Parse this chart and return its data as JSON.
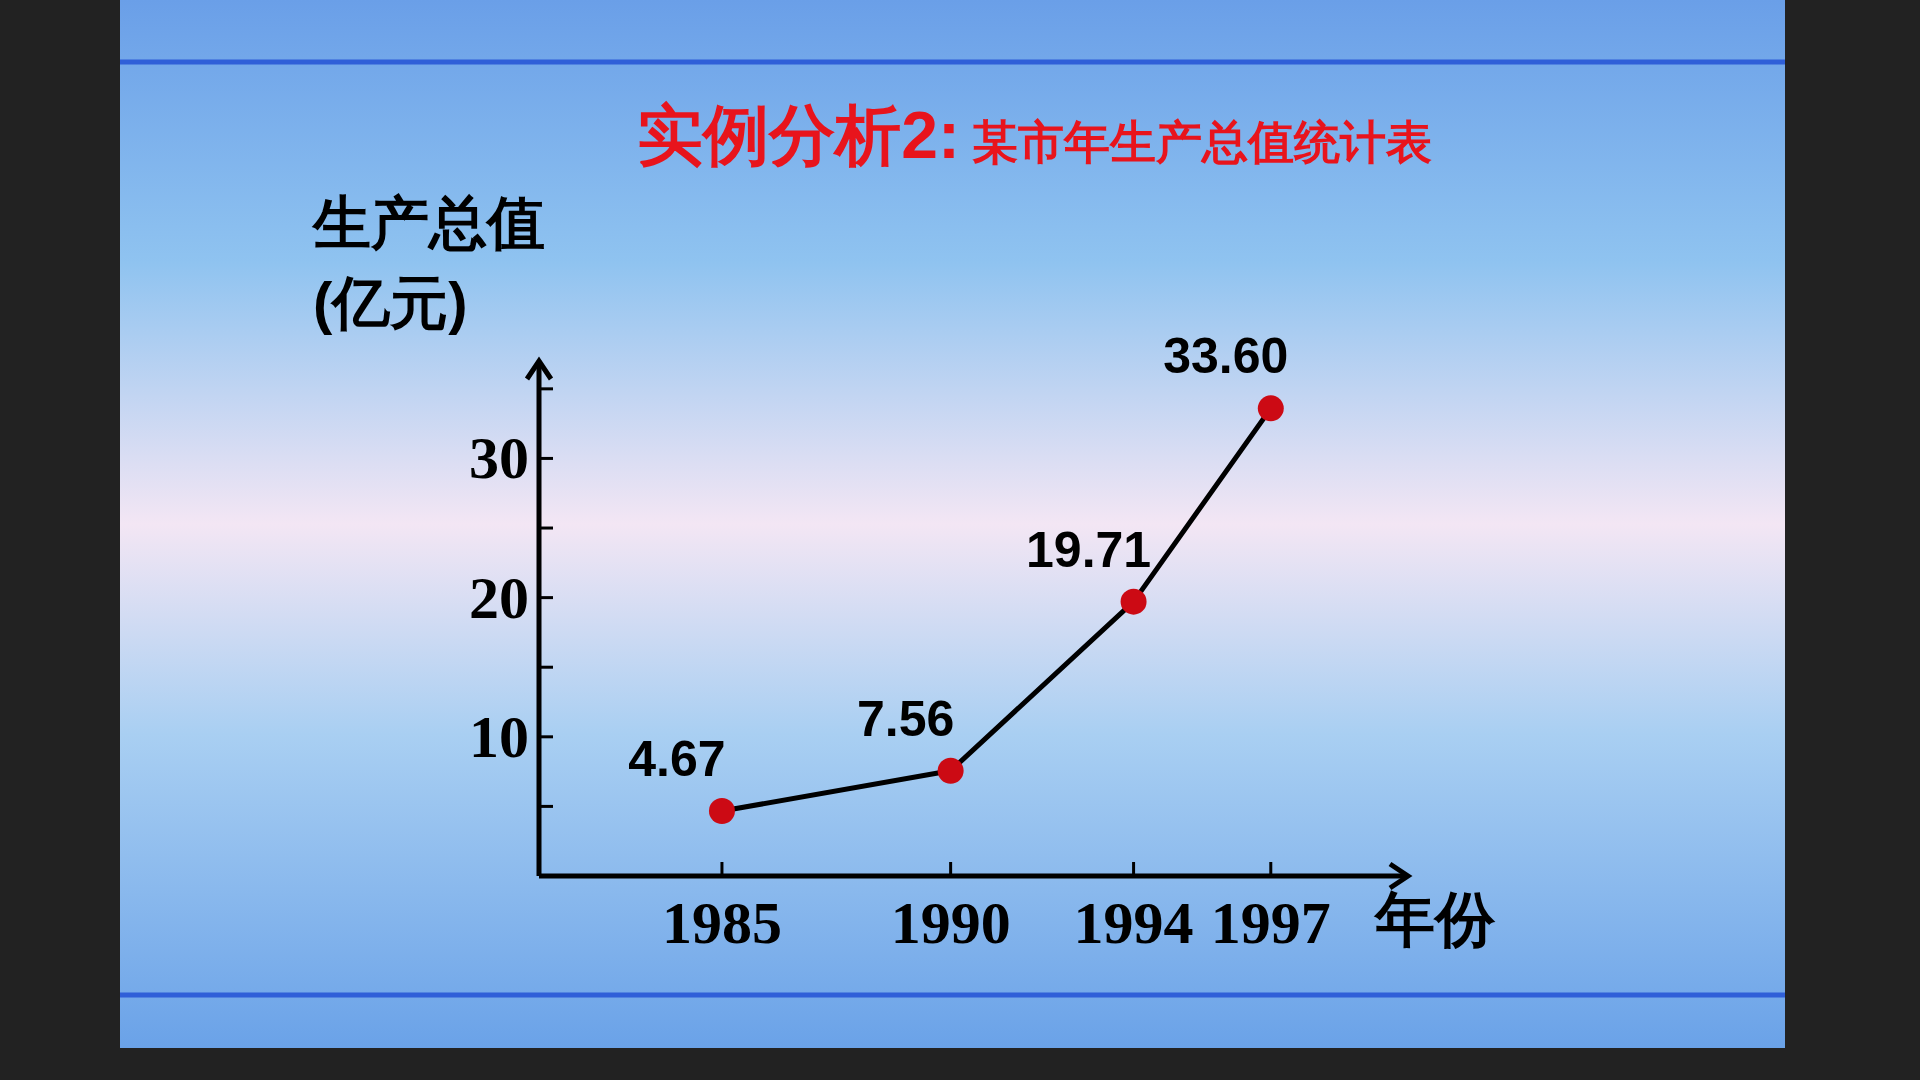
{
  "chart_data": {
    "type": "line",
    "title": "实例分析2:",
    "subtitle": "某市年生产总值统计表",
    "xlabel": "年份",
    "ylabel": "生产总值\n(亿元)",
    "x": [
      1985,
      1990,
      1994,
      1997
    ],
    "series": [
      {
        "color": "#000000",
        "colors": [
          "#cc0a14",
          "#cc0a14",
          "#cc0a14",
          "#cc0a14"
        ],
        "values": [
          4.67,
          7.56,
          19.71,
          33.6
        ],
        "value_labels": [
          "4.67",
          "7.56",
          "19.71",
          "33.60"
        ]
      }
    ],
    "xlim": [
      1981,
      2000
    ],
    "xticks": [
      1985,
      1990,
      1994,
      1997
    ],
    "ylim": [
      0,
      37
    ],
    "yticks": [
      {
        "value": 5,
        "label": null
      },
      10,
      {
        "value": 15,
        "label": null
      },
      20,
      {
        "value": 25,
        "label": null
      },
      30,
      {
        "value": 35,
        "label": null
      }
    ],
    "marker": "circle"
  }
}
